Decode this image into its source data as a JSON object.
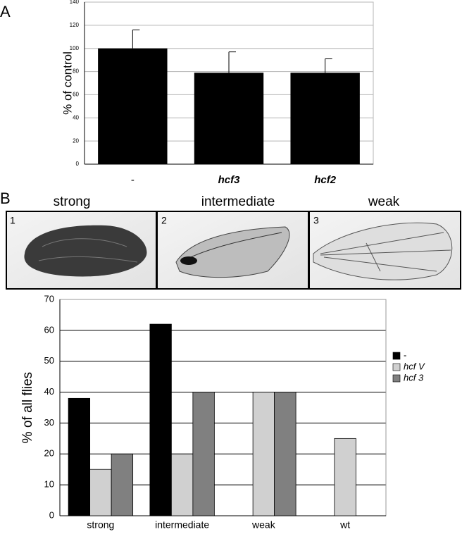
{
  "panel_labels": [
    "A",
    "B"
  ],
  "images": [
    {
      "number": "1",
      "caption": "strong"
    },
    {
      "number": "2",
      "caption": "intermediate"
    },
    {
      "number": "3",
      "caption": "weak"
    }
  ],
  "chart_data": [
    {
      "type": "bar",
      "ylabel": "% of control",
      "categories": [
        "-",
        "hcf3",
        "hcf2"
      ],
      "values": [
        100,
        79,
        79
      ],
      "errors": [
        16,
        18,
        12
      ],
      "color": "#000000",
      "ylim": [
        0,
        140
      ],
      "yticks": [
        0,
        20,
        40,
        60,
        80,
        100,
        120,
        140
      ],
      "grid": true
    },
    {
      "type": "bar",
      "ylabel": "% of all flies",
      "categories": [
        "strong",
        "intermediate",
        "weak",
        "wt"
      ],
      "series": [
        {
          "name": "-",
          "color": "#000000",
          "values": [
            38,
            62,
            null,
            null
          ]
        },
        {
          "name": "hcf V",
          "color": "#d0d0d0",
          "values": [
            15,
            20,
            40,
            25
          ]
        },
        {
          "name": "hcf 3",
          "color": "#808080",
          "values": [
            20,
            40,
            40,
            null
          ]
        }
      ],
      "ylim": [
        0,
        70
      ],
      "yticks": [
        0,
        10,
        20,
        30,
        40,
        50,
        60,
        70
      ],
      "grid": true,
      "legend": "right"
    }
  ]
}
